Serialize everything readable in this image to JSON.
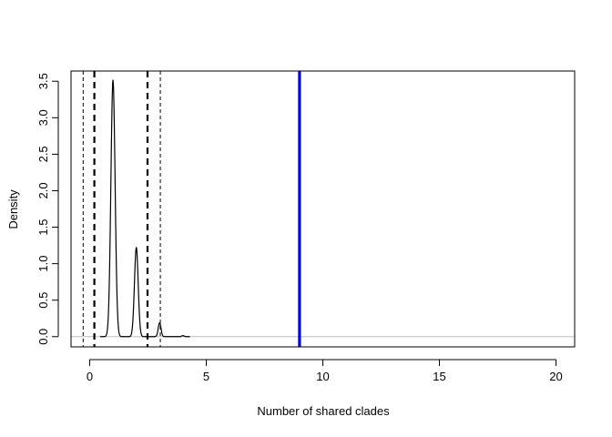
{
  "chart_data": {
    "type": "line",
    "title": "",
    "xlabel": "Number of shared clades",
    "ylabel": "Density",
    "xlim": [
      -0.8,
      20.8
    ],
    "ylim": [
      -0.14,
      3.64
    ],
    "x_ticks": [
      0,
      5,
      10,
      15,
      20
    ],
    "y_ticks": [
      0.0,
      0.5,
      1.0,
      1.5,
      2.0,
      2.5,
      3.0,
      3.5
    ],
    "x_tick_labels": [
      "0",
      "5",
      "10",
      "15",
      "20"
    ],
    "y_tick_labels": [
      "0.0",
      "0.5",
      "1.0",
      "1.5",
      "2.0",
      "2.5",
      "3.0",
      "3.5"
    ],
    "grid": false,
    "baseline": {
      "y": 0,
      "color": "#bebebe"
    },
    "density_peaks": [
      {
        "center": 1,
        "height": 3.51,
        "width": 0.09
      },
      {
        "center": 2,
        "height": 1.22,
        "width": 0.08
      },
      {
        "center": 3,
        "height": 0.19,
        "width": 0.06
      },
      {
        "center": 4,
        "height": 0.015,
        "width": 0.05
      }
    ],
    "series_color": "#000000",
    "reference_lines": [
      {
        "x": -0.28,
        "style": "thin-dashed",
        "color": "#000000"
      },
      {
        "x": 0.2,
        "style": "thick-dashed",
        "color": "#000000"
      },
      {
        "x": 2.48,
        "style": "thick-dashed",
        "color": "#000000"
      },
      {
        "x": 3.03,
        "style": "thin-dashed",
        "color": "#000000"
      },
      {
        "x": 9,
        "style": "solid",
        "color": "#0000ee"
      }
    ]
  }
}
